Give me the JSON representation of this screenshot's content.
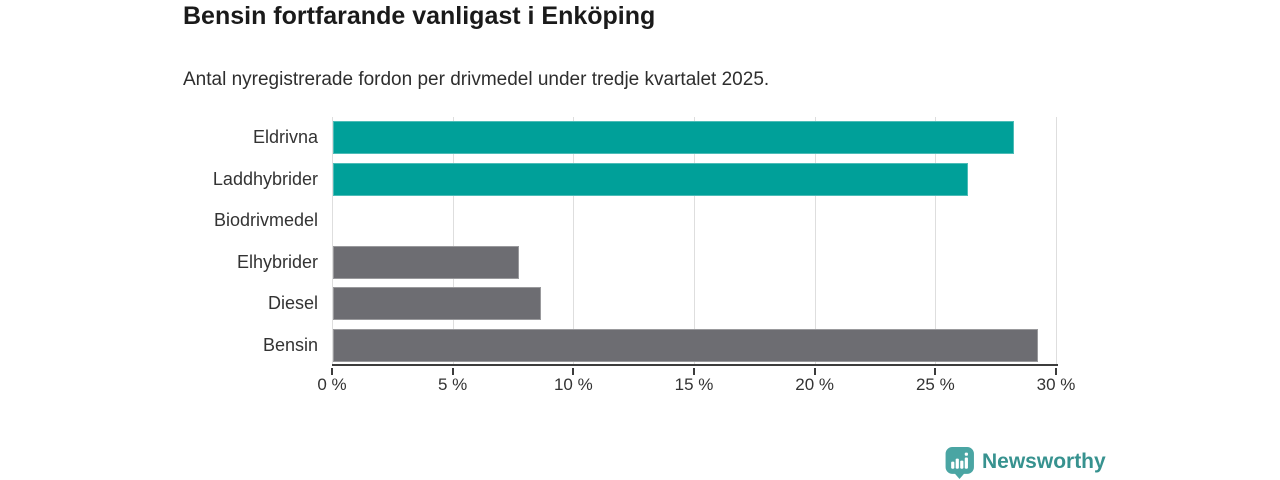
{
  "title": "Bensin fortfarande vanligast i Enköping",
  "subtitle": "Antal nyregistrerade fordon per drivmedel under tredje kvartalet 2025.",
  "chart_data": {
    "type": "bar",
    "orientation": "horizontal",
    "title": "Bensin fortfarande vanligast i Enköping",
    "subtitle": "Antal nyregistrerade fordon per drivmedel under tredje kvartalet 2025.",
    "categories": [
      "Eldrivna",
      "Laddhybrider",
      "Biodrivmedel",
      "Elhybrider",
      "Diesel",
      "Bensin"
    ],
    "values": [
      28.2,
      26.3,
      0,
      7.7,
      8.6,
      29.2
    ],
    "unit": "%",
    "xlim": [
      0,
      30
    ],
    "x_ticks": [
      {
        "value": 0,
        "label": "0 %"
      },
      {
        "value": 5,
        "label": "5 %"
      },
      {
        "value": 10,
        "label": "10 %"
      },
      {
        "value": 15,
        "label": "15 %"
      },
      {
        "value": 20,
        "label": "20 %"
      },
      {
        "value": 25,
        "label": "25 %"
      },
      {
        "value": 30,
        "label": "30 %"
      }
    ],
    "bar_colors": [
      "#00a099",
      "#00a099",
      "#00a099",
      "#6d6d72",
      "#6d6d72",
      "#6d6d72"
    ],
    "grid": true,
    "legend_position": "none"
  },
  "colors": {
    "teal": "#00a099",
    "gray": "#6d6d72",
    "axis": "#3c3c3c",
    "gridline": "#dedede",
    "label_text": "#333333",
    "title_text": "#1a1a1a",
    "brand_text": "#37928f",
    "brand_icon": "#4aa5a3"
  },
  "footer": {
    "brand": "Newsworthy",
    "logo_icon": "speech-bubble-bar-chart-icon"
  }
}
